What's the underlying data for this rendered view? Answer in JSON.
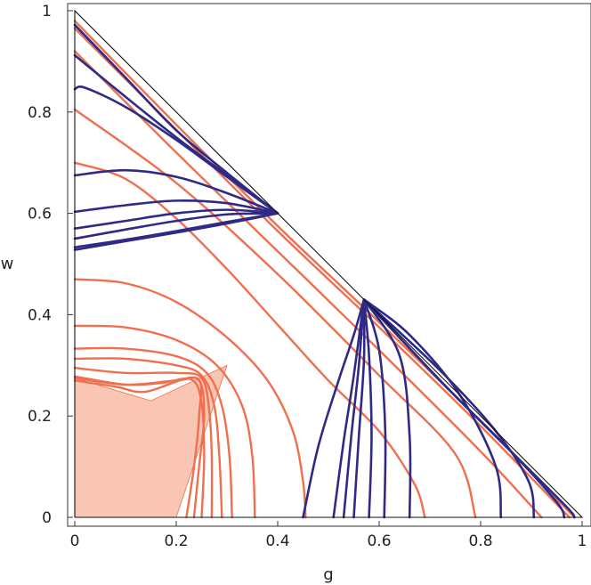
{
  "chart_data": {
    "type": "line",
    "xlabel": "g",
    "ylabel": "w",
    "xlim": [
      0,
      1
    ],
    "ylim": [
      0,
      1
    ],
    "x_ticks": [
      "0",
      "0.2",
      "0.4",
      "0.6",
      "0.8",
      "1"
    ],
    "y_ticks": [
      "0",
      "0.2",
      "0.4",
      "0.6",
      "0.8",
      "1"
    ],
    "grid": false,
    "colors": {
      "blue": "#2e2a86",
      "orange": "#ef6f4f",
      "fill": "#f9c6b4",
      "frame": "#333333"
    },
    "boundary_triangle": [
      [
        0,
        0
      ],
      [
        1,
        0
      ],
      [
        0,
        1
      ]
    ],
    "shaded_region": [
      [
        0,
        0
      ],
      [
        0,
        0.275
      ],
      [
        0.15,
        0.23
      ],
      [
        0.3,
        0.3
      ],
      [
        0.2,
        0
      ]
    ],
    "blue_series_1": [
      {
        "points": [
          [
            0,
            0.972
          ],
          [
            0.1,
            0.868
          ],
          [
            0.2,
            0.764
          ],
          [
            0.3,
            0.68
          ],
          [
            0.4,
            0.6
          ]
        ]
      },
      {
        "points": [
          [
            0,
            0.912
          ],
          [
            0.1,
            0.83
          ],
          [
            0.2,
            0.75
          ],
          [
            0.3,
            0.675
          ],
          [
            0.4,
            0.6
          ]
        ]
      },
      {
        "points": [
          [
            0,
            0.845
          ],
          [
            0.02,
            0.848
          ],
          [
            0.1,
            0.81
          ],
          [
            0.2,
            0.745
          ],
          [
            0.3,
            0.672
          ],
          [
            0.4,
            0.6
          ]
        ]
      },
      {
        "points": [
          [
            0,
            0.675
          ],
          [
            0.1,
            0.685
          ],
          [
            0.2,
            0.672
          ],
          [
            0.3,
            0.64
          ],
          [
            0.4,
            0.6
          ]
        ]
      },
      {
        "points": [
          [
            0,
            0.603
          ],
          [
            0.1,
            0.616
          ],
          [
            0.2,
            0.625
          ],
          [
            0.3,
            0.62
          ],
          [
            0.4,
            0.6
          ]
        ]
      },
      {
        "points": [
          [
            0,
            0.57
          ],
          [
            0.1,
            0.585
          ],
          [
            0.2,
            0.6
          ],
          [
            0.3,
            0.607
          ],
          [
            0.4,
            0.6
          ]
        ]
      },
      {
        "points": [
          [
            0,
            0.55
          ],
          [
            0.1,
            0.568
          ],
          [
            0.2,
            0.585
          ],
          [
            0.3,
            0.598
          ],
          [
            0.4,
            0.6
          ]
        ]
      },
      {
        "points": [
          [
            0,
            0.533
          ],
          [
            0.1,
            0.548
          ],
          [
            0.2,
            0.565
          ],
          [
            0.3,
            0.583
          ],
          [
            0.4,
            0.6
          ]
        ]
      },
      {
        "points": [
          [
            0,
            0.528
          ],
          [
            0.1,
            0.545
          ],
          [
            0.2,
            0.562
          ],
          [
            0.3,
            0.58
          ],
          [
            0.4,
            0.6
          ]
        ]
      }
    ],
    "blue_series_2": [
      {
        "points": [
          [
            0.45,
            0.0
          ],
          [
            0.48,
            0.14
          ],
          [
            0.52,
            0.27
          ],
          [
            0.55,
            0.36
          ],
          [
            0.57,
            0.43
          ]
        ]
      },
      {
        "points": [
          [
            0.51,
            0.0
          ],
          [
            0.53,
            0.15
          ],
          [
            0.55,
            0.28
          ],
          [
            0.57,
            0.43
          ]
        ]
      },
      {
        "points": [
          [
            0.53,
            0.0
          ],
          [
            0.545,
            0.16
          ],
          [
            0.56,
            0.3
          ],
          [
            0.57,
            0.43
          ]
        ]
      },
      {
        "points": [
          [
            0.55,
            0.0
          ],
          [
            0.56,
            0.16
          ],
          [
            0.57,
            0.31
          ],
          [
            0.57,
            0.43
          ]
        ]
      },
      {
        "points": [
          [
            0.58,
            0.0
          ],
          [
            0.585,
            0.16
          ],
          [
            0.58,
            0.32
          ],
          [
            0.57,
            0.43
          ]
        ]
      },
      {
        "points": [
          [
            0.61,
            0.0
          ],
          [
            0.612,
            0.17
          ],
          [
            0.6,
            0.33
          ],
          [
            0.57,
            0.43
          ]
        ]
      },
      {
        "points": [
          [
            0.66,
            0.0
          ],
          [
            0.66,
            0.16
          ],
          [
            0.64,
            0.32
          ],
          [
            0.57,
            0.43
          ]
        ]
      },
      {
        "points": [
          [
            0.84,
            0.0
          ],
          [
            0.83,
            0.1
          ],
          [
            0.76,
            0.24
          ],
          [
            0.66,
            0.36
          ],
          [
            0.57,
            0.43
          ]
        ]
      },
      {
        "points": [
          [
            0.905,
            0.0
          ],
          [
            0.895,
            0.07
          ],
          [
            0.83,
            0.17
          ],
          [
            0.72,
            0.29
          ],
          [
            0.57,
            0.43
          ]
        ]
      },
      {
        "points": [
          [
            0.965,
            0.0
          ],
          [
            0.95,
            0.03
          ],
          [
            0.86,
            0.13
          ],
          [
            0.72,
            0.27
          ],
          [
            0.57,
            0.43
          ]
        ]
      },
      {
        "points": [
          [
            0.985,
            0.0
          ],
          [
            0.97,
            0.02
          ],
          [
            0.87,
            0.12
          ],
          [
            0.73,
            0.26
          ],
          [
            0.57,
            0.43
          ]
        ]
      }
    ],
    "orange_series": [
      {
        "points": [
          [
            0,
            0.98
          ],
          [
            0.2,
            0.775
          ],
          [
            0.4,
            0.575
          ],
          [
            0.6,
            0.385
          ],
          [
            0.8,
            0.19
          ],
          [
            0.985,
            0.0
          ]
        ]
      },
      {
        "points": [
          [
            0,
            0.965
          ],
          [
            0.2,
            0.765
          ],
          [
            0.4,
            0.565
          ],
          [
            0.6,
            0.375
          ],
          [
            0.8,
            0.18
          ],
          [
            0.975,
            0.0
          ]
        ]
      },
      {
        "points": [
          [
            0,
            0.92
          ],
          [
            0.2,
            0.72
          ],
          [
            0.4,
            0.525
          ],
          [
            0.6,
            0.33
          ],
          [
            0.8,
            0.13
          ],
          [
            0.92,
            0.0
          ]
        ]
      },
      {
        "points": [
          [
            0,
            0.805
          ],
          [
            0.2,
            0.66
          ],
          [
            0.4,
            0.48
          ],
          [
            0.6,
            0.28
          ],
          [
            0.75,
            0.125
          ],
          [
            0.79,
            0.0
          ]
        ]
      },
      {
        "points": [
          [
            0,
            0.7
          ],
          [
            0.1,
            0.668
          ],
          [
            0.2,
            0.59
          ],
          [
            0.3,
            0.49
          ],
          [
            0.4,
            0.38
          ],
          [
            0.5,
            0.27
          ],
          [
            0.6,
            0.17
          ],
          [
            0.67,
            0.065
          ],
          [
            0.69,
            0.0
          ]
        ]
      },
      {
        "points": [
          [
            0,
            0.47
          ],
          [
            0.1,
            0.462
          ],
          [
            0.2,
            0.425
          ],
          [
            0.3,
            0.355
          ],
          [
            0.38,
            0.27
          ],
          [
            0.43,
            0.17
          ],
          [
            0.45,
            0.07
          ],
          [
            0.455,
            0.0
          ]
        ]
      },
      {
        "points": [
          [
            0,
            0.378
          ],
          [
            0.1,
            0.375
          ],
          [
            0.2,
            0.35
          ],
          [
            0.28,
            0.3
          ],
          [
            0.33,
            0.22
          ],
          [
            0.35,
            0.12
          ],
          [
            0.355,
            0.0
          ]
        ]
      },
      {
        "points": [
          [
            0,
            0.333
          ],
          [
            0.1,
            0.333
          ],
          [
            0.2,
            0.318
          ],
          [
            0.26,
            0.285
          ],
          [
            0.29,
            0.22
          ],
          [
            0.305,
            0.12
          ],
          [
            0.31,
            0.0
          ]
        ]
      },
      {
        "points": [
          [
            0,
            0.313
          ],
          [
            0.1,
            0.313
          ],
          [
            0.2,
            0.3
          ],
          [
            0.25,
            0.28
          ],
          [
            0.275,
            0.22
          ],
          [
            0.285,
            0.12
          ],
          [
            0.29,
            0.0
          ]
        ]
      },
      {
        "points": [
          [
            0,
            0.295
          ],
          [
            0.1,
            0.285
          ],
          [
            0.2,
            0.285
          ],
          [
            0.25,
            0.275
          ],
          [
            0.265,
            0.21
          ],
          [
            0.27,
            0.12
          ],
          [
            0.27,
            0.0
          ]
        ]
      },
      {
        "points": [
          [
            0,
            0.278
          ],
          [
            0.1,
            0.262
          ],
          [
            0.17,
            0.265
          ],
          [
            0.23,
            0.272
          ],
          [
            0.25,
            0.225
          ],
          [
            0.255,
            0.12
          ],
          [
            0.25,
            0.0
          ]
        ]
      },
      {
        "points": [
          [
            0,
            0.275
          ],
          [
            0.1,
            0.262
          ],
          [
            0.2,
            0.27
          ],
          [
            0.245,
            0.27
          ],
          [
            0.255,
            0.2
          ],
          [
            0.245,
            0.1
          ],
          [
            0.235,
            0.0
          ]
        ]
      },
      {
        "points": [
          [
            0,
            0.27
          ],
          [
            0.08,
            0.258
          ],
          [
            0.14,
            0.248
          ],
          [
            0.24,
            0.275
          ],
          [
            0.245,
            0.2
          ],
          [
            0.235,
            0.1
          ],
          [
            0.22,
            0.0
          ]
        ]
      }
    ]
  }
}
